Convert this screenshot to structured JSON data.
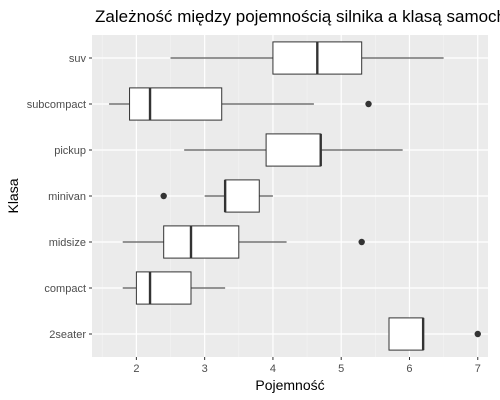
{
  "chart_data": {
    "type": "boxplot",
    "orientation": "horizontal",
    "title": "Zależność między pojemnością silnika a klasą samochodu",
    "xlabel": "Pojemność",
    "ylabel": "Klasa",
    "xlim": [
      1.35,
      7.15
    ],
    "x_ticks": [
      "2",
      "3",
      "4",
      "5",
      "6",
      "7"
    ],
    "grid": true,
    "legend": "none",
    "colors": {
      "panel": "#ebebeb",
      "grid_major": "#ffffff",
      "grid_minor": "#f4f4f4",
      "box_fill": "#ffffff",
      "box_stroke": "#333333",
      "outlier": "#333333",
      "tick_label": "#4d4d4d"
    },
    "categories": [
      "suv",
      "subcompact",
      "pickup",
      "minivan",
      "midsize",
      "compact",
      "2seater"
    ],
    "boxes": [
      {
        "category": "suv",
        "whisker_low": 2.5,
        "q1": 4.0,
        "median": 4.65,
        "q3": 5.3,
        "whisker_high": 6.5,
        "outliers": []
      },
      {
        "category": "subcompact",
        "whisker_low": 1.6,
        "q1": 1.9,
        "median": 2.2,
        "q3": 3.25,
        "whisker_high": 4.6,
        "outliers": [
          5.4
        ]
      },
      {
        "category": "pickup",
        "whisker_low": 2.7,
        "q1": 3.9,
        "median": 4.7,
        "q3": 4.7,
        "whisker_high": 5.9,
        "outliers": []
      },
      {
        "category": "minivan",
        "whisker_low": 3.0,
        "q1": 3.3,
        "median": 3.3,
        "q3": 3.8,
        "whisker_high": 4.0,
        "outliers": [
          2.4
        ]
      },
      {
        "category": "midsize",
        "whisker_low": 1.8,
        "q1": 2.4,
        "median": 2.8,
        "q3": 3.5,
        "whisker_high": 4.2,
        "outliers": [
          5.3
        ]
      },
      {
        "category": "compact",
        "whisker_low": 1.8,
        "q1": 2.0,
        "median": 2.2,
        "q3": 2.8,
        "whisker_high": 3.3,
        "outliers": []
      },
      {
        "category": "2seater",
        "whisker_low": 5.7,
        "q1": 5.7,
        "median": 6.2,
        "q3": 6.2,
        "whisker_high": 6.2,
        "outliers": [
          7.0
        ]
      }
    ]
  }
}
